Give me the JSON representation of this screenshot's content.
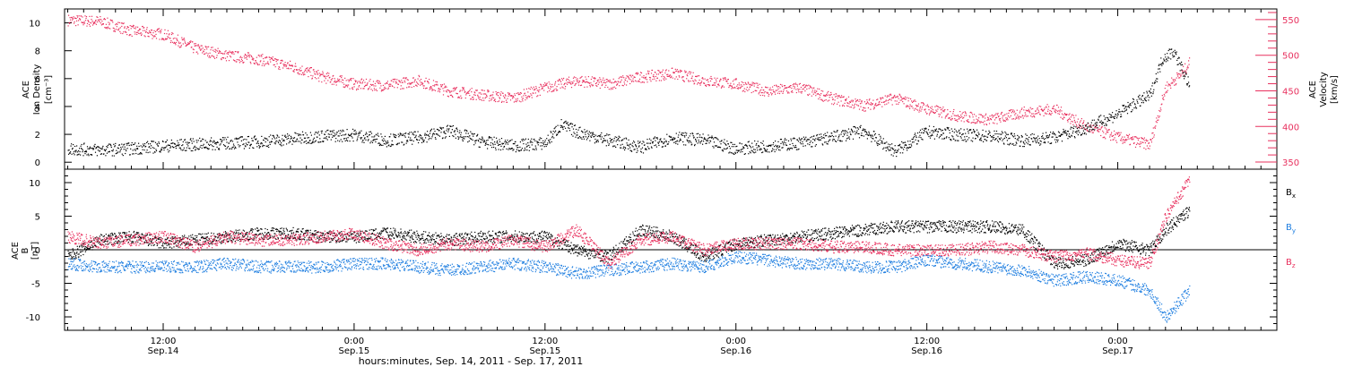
{
  "figure": {
    "xlabel": "hours:minutes, Sep. 14, 2011 - Sep. 17, 2011",
    "x_ticks": [
      {
        "hours": 12,
        "time": "12:00",
        "date": "Sep.14"
      },
      {
        "hours": 24,
        "time": "0:00",
        "date": "Sep.15"
      },
      {
        "hours": 36,
        "time": "12:00",
        "date": "Sep.15"
      },
      {
        "hours": 48,
        "time": "0:00",
        "date": "Sep.16"
      },
      {
        "hours": 60,
        "time": "12:00",
        "date": "Sep.16"
      },
      {
        "hours": 72,
        "time": "0:00",
        "date": "Sep.17"
      }
    ]
  },
  "chart_data": [
    {
      "type": "scatter",
      "title": "",
      "x_unit": "hours since Sep 14 2011 00:00",
      "xlim": [
        5.8,
        82
      ],
      "left_axis": {
        "label_lines": [
          "ACE",
          "Ion Density"
        ],
        "unit_label": "[cm⁻³]",
        "ylim": [
          -0.5,
          11
        ],
        "ticks": [
          0,
          2,
          4,
          6,
          8,
          10
        ],
        "color": "#000000"
      },
      "right_axis": {
        "label_lines": [
          "ACE",
          "Velocity"
        ],
        "unit_label": "[km/s]",
        "ylim": [
          340,
          565
        ],
        "ticks": [
          350,
          400,
          450,
          500,
          550
        ],
        "color": "#e8305e"
      },
      "series": [
        {
          "name": "Ion Density",
          "axis": "left",
          "color": "#000000",
          "x": [
            6,
            8,
            10,
            12,
            14,
            16,
            18,
            20,
            22,
            24,
            26,
            28,
            30,
            32,
            34,
            36,
            37,
            38,
            40,
            42,
            44,
            46,
            48,
            50,
            52,
            54,
            56,
            58,
            60,
            62,
            64,
            66,
            68,
            70,
            72,
            73,
            74,
            74.8,
            75.5,
            76.5
          ],
          "y": [
            1.0,
            0.9,
            1.0,
            1.2,
            1.3,
            1.4,
            1.5,
            1.7,
            1.9,
            2.0,
            1.6,
            1.8,
            2.3,
            1.5,
            1.2,
            1.4,
            2.7,
            2.2,
            1.6,
            1.1,
            1.8,
            1.6,
            1.0,
            1.2,
            1.4,
            1.8,
            2.3,
            0.8,
            2.2,
            2.0,
            1.9,
            1.6,
            1.8,
            2.5,
            3.5,
            4.2,
            4.8,
            7.5,
            8.0,
            5.5
          ]
        },
        {
          "name": "Velocity",
          "axis": "right",
          "color": "#e8305e",
          "x": [
            6,
            8,
            10,
            12,
            14,
            16,
            18,
            20,
            22,
            24,
            26,
            28,
            30,
            32,
            34,
            36,
            38,
            40,
            42,
            44,
            46,
            48,
            50,
            52,
            54,
            56,
            58,
            60,
            62,
            64,
            66,
            68,
            70,
            72,
            74,
            75,
            76,
            76.5
          ],
          "y": [
            550,
            548,
            535,
            530,
            510,
            500,
            495,
            485,
            470,
            460,
            458,
            465,
            450,
            445,
            440,
            455,
            465,
            460,
            470,
            475,
            465,
            460,
            450,
            455,
            440,
            430,
            440,
            425,
            415,
            410,
            420,
            425,
            400,
            385,
            375,
            455,
            475,
            490
          ]
        }
      ]
    },
    {
      "type": "scatter",
      "title": "",
      "x_unit": "hours since Sep 14 2011 00:00",
      "xlim": [
        5.8,
        82
      ],
      "y_axis": {
        "label_lines": [
          "ACE",
          "B"
        ],
        "unit_label": "[nT]",
        "ylim": [
          -12,
          12
        ],
        "ticks": [
          -10,
          -5,
          0,
          5,
          10
        ]
      },
      "legend": {
        "placement": "right",
        "entries": [
          {
            "label": "B",
            "sub": "x",
            "color": "#000000"
          },
          {
            "label": "B",
            "sub": "y",
            "color": "#1e7ee0"
          },
          {
            "label": "B",
            "sub": "z",
            "color": "#e8305e"
          }
        ]
      },
      "series": [
        {
          "name": "Bx",
          "color": "#000000",
          "x": [
            6,
            8,
            10,
            12,
            14,
            16,
            18,
            20,
            22,
            24,
            26,
            28,
            30,
            32,
            34,
            36,
            38,
            40,
            42,
            44,
            46,
            48,
            50,
            52,
            54,
            56,
            58,
            60,
            62,
            64,
            66,
            68,
            70,
            72,
            74,
            75,
            76.5
          ],
          "y": [
            -1.0,
            1.5,
            2.0,
            1.0,
            1.5,
            2.0,
            2.5,
            2.5,
            2.0,
            2.0,
            2.5,
            2.0,
            1.5,
            2.0,
            2.0,
            2.0,
            0.0,
            -1.0,
            3.0,
            2.0,
            -1.0,
            1.0,
            1.5,
            2.0,
            2.5,
            3.0,
            3.5,
            3.5,
            3.5,
            3.5,
            3.0,
            -2.0,
            -1.5,
            1.0,
            0.0,
            3.0,
            6.0
          ]
        },
        {
          "name": "By",
          "color": "#1e7ee0",
          "x": [
            6,
            8,
            10,
            12,
            14,
            16,
            18,
            20,
            22,
            24,
            26,
            28,
            30,
            32,
            34,
            36,
            38,
            40,
            42,
            44,
            46,
            48,
            50,
            52,
            54,
            56,
            58,
            60,
            62,
            64,
            66,
            68,
            70,
            72,
            74,
            75,
            76.5
          ],
          "y": [
            -2.0,
            -2.5,
            -2.5,
            -2.5,
            -2.5,
            -2.0,
            -2.5,
            -2.5,
            -2.5,
            -2.0,
            -2.0,
            -2.5,
            -3.0,
            -2.5,
            -2.0,
            -2.5,
            -3.5,
            -3.0,
            -2.5,
            -2.0,
            -2.5,
            -1.0,
            -1.5,
            -2.0,
            -2.0,
            -2.5,
            -2.5,
            -1.5,
            -2.0,
            -2.5,
            -3.0,
            -4.5,
            -4.0,
            -4.5,
            -6.0,
            -10.0,
            -6.0
          ]
        },
        {
          "name": "Bz",
          "color": "#e8305e",
          "x": [
            6,
            8,
            10,
            12,
            14,
            16,
            18,
            20,
            22,
            24,
            26,
            28,
            30,
            32,
            34,
            36,
            38,
            40,
            42,
            44,
            46,
            48,
            50,
            52,
            54,
            56,
            58,
            60,
            62,
            64,
            66,
            68,
            70,
            72,
            74,
            75,
            76.5
          ],
          "y": [
            2.0,
            1.0,
            1.5,
            2.0,
            0.5,
            2.0,
            1.5,
            1.5,
            2.0,
            2.5,
            1.0,
            0.0,
            1.0,
            0.5,
            1.5,
            0.5,
            3.0,
            -2.0,
            1.5,
            2.0,
            0.0,
            1.0,
            1.0,
            1.0,
            0.5,
            0.5,
            0.0,
            0.0,
            0.0,
            0.5,
            0.0,
            -1.0,
            -0.5,
            -1.5,
            -2.0,
            5.0,
            10.5
          ]
        }
      ]
    }
  ]
}
